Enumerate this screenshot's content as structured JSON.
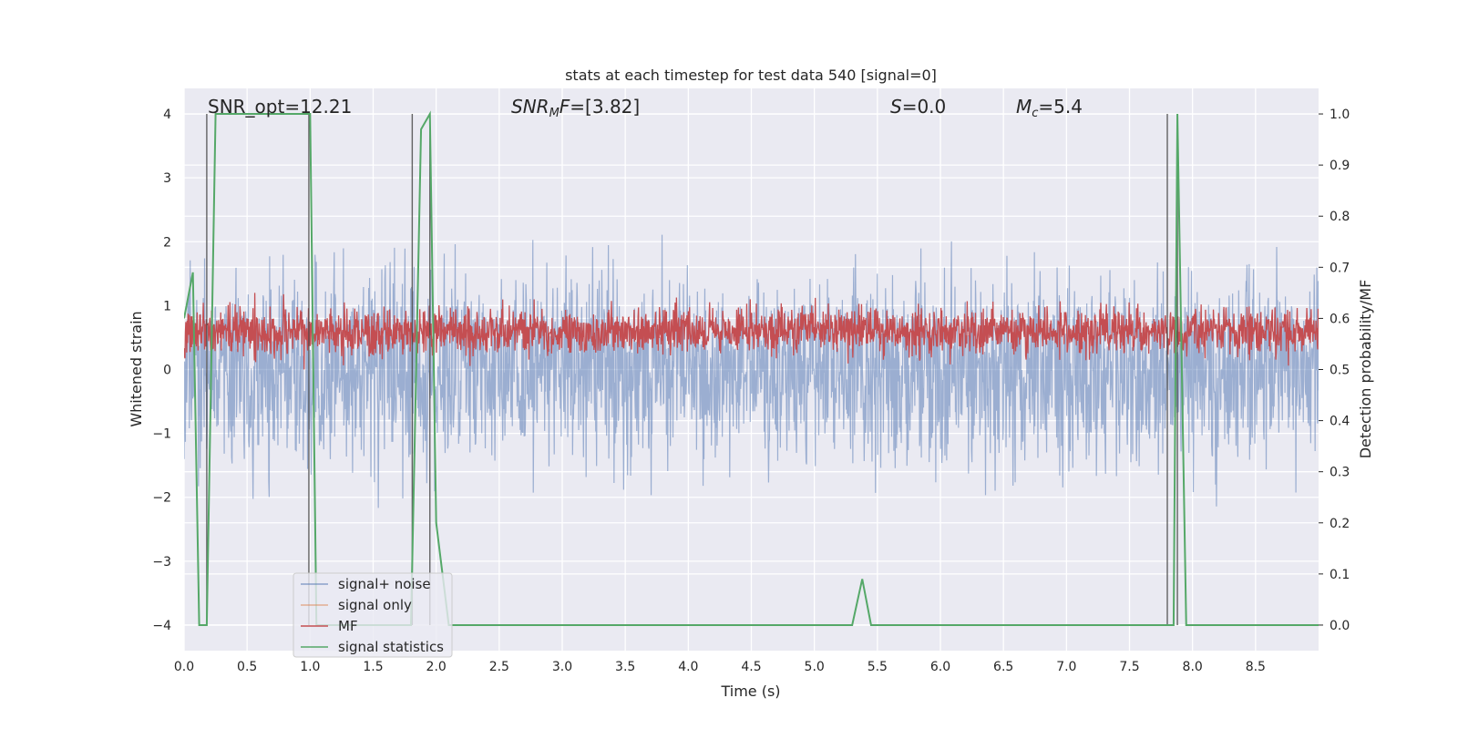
{
  "chart_data": {
    "type": "line",
    "title": "stats at each timestep for test data 540 [signal=0]",
    "xlabel": "Time (s)",
    "ylabel_left": "Whitened strain",
    "ylabel_right": "Detection probability/MF",
    "xlim": [
      0.0,
      9.0
    ],
    "ylim_left": [
      -4.4,
      4.4
    ],
    "ylim_right": [
      -0.05,
      1.05
    ],
    "xticks": [
      "0.0",
      "0.5",
      "1.0",
      "1.5",
      "2.0",
      "2.5",
      "3.0",
      "3.5",
      "4.0",
      "4.5",
      "5.0",
      "5.5",
      "6.0",
      "6.5",
      "7.0",
      "7.5",
      "8.0",
      "8.5"
    ],
    "yticks_left": [
      "4",
      "3",
      "2",
      "1",
      "0",
      "−1",
      "−2",
      "−3",
      "−4"
    ],
    "yticks_right": [
      "1.0",
      "0.9",
      "0.8",
      "0.7",
      "0.6",
      "0.5",
      "0.4",
      "0.3",
      "0.2",
      "0.1",
      "0.0"
    ],
    "grid": true,
    "legend_position": "lower-left",
    "annotations": {
      "snr_opt": "SNR_opt=12.21",
      "snr_mf": "=[3.82]",
      "s_value": "=0.0",
      "mc_value": "=5.4"
    },
    "series": [
      {
        "name": "signal+ noise",
        "color": "#4c72b0",
        "note_range_left": [
          -4.0,
          4.0
        ]
      },
      {
        "name": "signal only",
        "color": "#dd8452"
      },
      {
        "name": "MF",
        "color": "#c44e52",
        "range_right": [
          0.5,
          0.65
        ]
      },
      {
        "name": "signal statistics",
        "color": "#55a868",
        "x": [
          0.0,
          0.07,
          0.12,
          0.18,
          0.25,
          0.3,
          0.5,
          0.98,
          1.0,
          1.05,
          1.1,
          1.5,
          1.8,
          1.88,
          1.95,
          2.0,
          2.1,
          2.2,
          3.0,
          4.0,
          5.0,
          5.3,
          5.38,
          5.45,
          5.5,
          6.0,
          7.0,
          7.8,
          7.85,
          7.88,
          7.95,
          8.0,
          9.0
        ],
        "y": [
          0.6,
          0.69,
          0.0,
          0.0,
          1.0,
          1.0,
          1.0,
          1.0,
          1.0,
          0.0,
          0.0,
          0.0,
          0.0,
          0.97,
          1.0,
          0.2,
          0.0,
          0.0,
          0.0,
          0.0,
          0.0,
          0.0,
          0.09,
          0.0,
          0.0,
          0.0,
          0.0,
          0.0,
          0.0,
          1.0,
          0.0,
          0.0,
          0.0
        ]
      }
    ],
    "vlines_x": [
      0.18,
      0.99,
      1.81,
      1.95,
      7.8,
      7.88
    ]
  }
}
